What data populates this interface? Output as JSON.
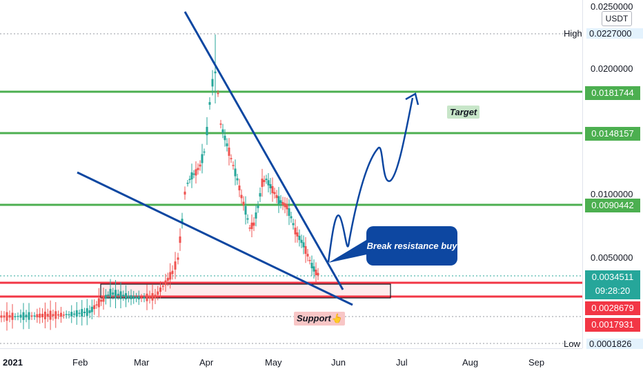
{
  "chart_data": {
    "type": "candlestick",
    "price_scale": {
      "unit": "USDT",
      "ticks": [
        "0.0250000",
        "0.0200000",
        "0.0100000",
        "0.0050000"
      ],
      "high": {
        "label": "High",
        "value": "0.0227000"
      },
      "low": {
        "label": "Low",
        "value": "0.0001826"
      }
    },
    "x_axis": {
      "ticks": [
        {
          "label": "2021",
          "bold": true
        },
        {
          "label": "Feb"
        },
        {
          "label": "Mar"
        },
        {
          "label": "Apr"
        },
        {
          "label": "May"
        },
        {
          "label": "Jun"
        },
        {
          "label": "Jul"
        },
        {
          "label": "Aug"
        },
        {
          "label": "Sep"
        }
      ]
    },
    "horizontal_levels": [
      {
        "value": "0.0181744",
        "color": "#4caf50"
      },
      {
        "value": "0.0148157",
        "color": "#4caf50"
      },
      {
        "value": "0.0090442",
        "color": "#4caf50"
      },
      {
        "value": "0.0028679",
        "color": "#f23645"
      },
      {
        "value": "0.0017931",
        "color": "#f23645"
      }
    ],
    "current_price": {
      "value": "0.0034511",
      "countdown": "09:28:20",
      "color": "#26a69a"
    },
    "annotations": {
      "target": "Target",
      "support": "Support👆",
      "callout": "Break resistance buy"
    },
    "colors": {
      "up": "#26a69a",
      "down": "#ef5350",
      "trendline": "#0d47a1"
    }
  }
}
